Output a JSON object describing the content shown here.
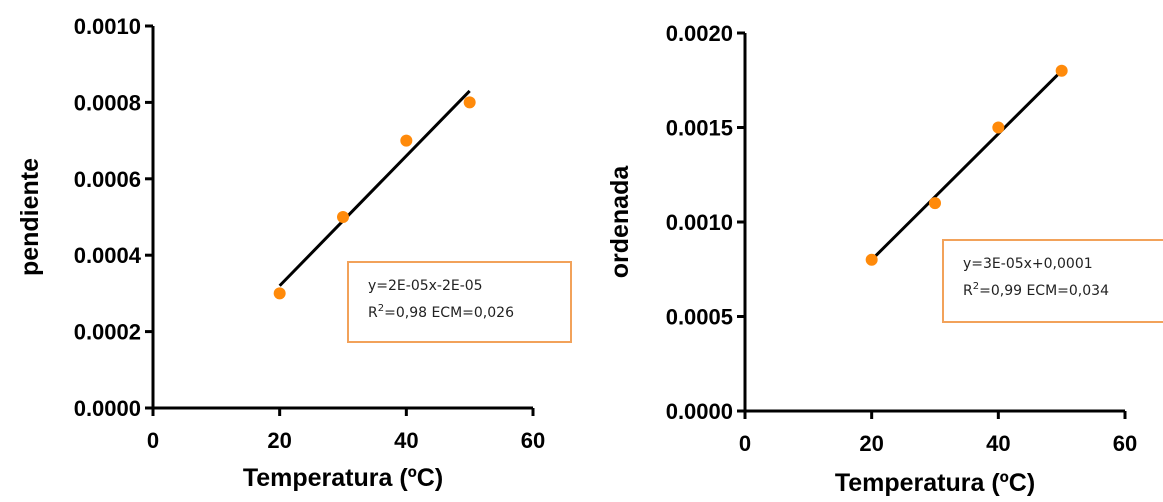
{
  "chart_data": [
    {
      "type": "scatter",
      "xlabel": "Temperatura (ºC)",
      "ylabel": "pendiente",
      "xlim": [
        0,
        60
      ],
      "ylim": [
        0,
        0.001
      ],
      "x_ticks": [
        0,
        20,
        40,
        60
      ],
      "x_tick_labels": [
        "0",
        "20",
        "40",
        "60"
      ],
      "y_ticks": [
        0,
        0.0002,
        0.0004,
        0.0006,
        0.0008,
        0.001
      ],
      "y_tick_labels": [
        "0.0000",
        "0.0002",
        "0.0004",
        "0.0006",
        "0.0008",
        "0.0010"
      ],
      "x": [
        20,
        30,
        40,
        50
      ],
      "y": [
        0.0003,
        0.0005,
        0.0007,
        0.0008
      ],
      "point_color": "#ff8a0a",
      "fit_line": {
        "x": [
          20,
          50
        ],
        "y": [
          0.00032,
          0.00083
        ]
      },
      "annotation": {
        "line1": "y=2E-05x-2E-05",
        "r_label": "R",
        "r_exp": "2",
        "line2_rest": "=0,98 ECM=0,026"
      },
      "grid": false
    },
    {
      "type": "scatter",
      "xlabel": "Temperatura (ºC)",
      "ylabel": "ordenada",
      "xlim": [
        0,
        60
      ],
      "ylim": [
        0,
        0.002
      ],
      "x_ticks": [
        0,
        20,
        40,
        60
      ],
      "x_tick_labels": [
        "0",
        "20",
        "40",
        "60"
      ],
      "y_ticks": [
        0,
        0.0005,
        0.001,
        0.0015,
        0.002
      ],
      "y_tick_labels": [
        "0.0000",
        "0.0005",
        "0.0010",
        "0.0015",
        "0.0020"
      ],
      "x": [
        20,
        30,
        40,
        50
      ],
      "y": [
        0.0008,
        0.0011,
        0.0015,
        0.0018
      ],
      "point_color": "#ff8a0a",
      "fit_line": {
        "x": [
          20,
          50
        ],
        "y": [
          0.0008,
          0.0018
        ]
      },
      "annotation": {
        "line1": "y=3E-05x+0,0001",
        "r_label": "R",
        "r_exp": "2",
        "line2_rest": "=0,99 ECM=0,034"
      },
      "grid": false
    }
  ]
}
